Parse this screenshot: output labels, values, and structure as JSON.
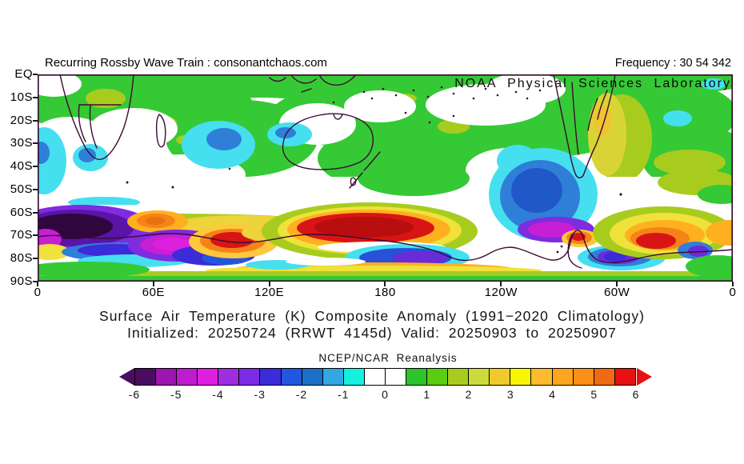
{
  "header": {
    "watermark": "Recurring Rossby Wave Train : consonantchaos.com",
    "frequency": "Frequency : 30 54 342",
    "credit": "NOAA Physical Sciences Laboratory"
  },
  "title": {
    "line1": "Surface Air Temperature (K) Composite Anomaly (1991−2020 Climatology)",
    "line2": "Initialized: 20250724 (RRWT 4145d) Valid: 20250903 to 20250907"
  },
  "chart_data": {
    "type": "heatmap",
    "title": "Surface Air Temperature (K) Composite Anomaly (1991-2020 Climatology)",
    "subtitle": "Initialized: 20250724 (RRWT 4145d) Valid: 20250903 to 20250907",
    "variable": "Surface Air Temperature anomaly",
    "units": "K",
    "colorbar_label": "NCEP/NCAR Reanalysis",
    "lat_tick_labels": [
      "EQ",
      "10S",
      "20S",
      "30S",
      "40S",
      "50S",
      "60S",
      "70S",
      "80S",
      "90S"
    ],
    "lon_tick_labels": [
      "0",
      "60E",
      "120E",
      "180",
      "120W",
      "60W",
      "0"
    ],
    "colorbar": {
      "min": -6,
      "max": 6,
      "cell_step": 0.5,
      "tick_labels": [
        "-6",
        "-5",
        "-4",
        "-3",
        "-2",
        "-1",
        "0",
        "1",
        "2",
        "3",
        "4",
        "5",
        "6"
      ],
      "cell_colors": [
        "#4A0D5F",
        "#9C15AE",
        "#BE1CD0",
        "#DE1FDE",
        "#A02CE0",
        "#7B2BE4",
        "#3B2BD8",
        "#2356DE",
        "#1B6FC8",
        "#33A7E3",
        "#16F0E0",
        "#FFFFFF",
        "#FFFFFF",
        "#2DC32D",
        "#5ACC12",
        "#A8CC1E",
        "#CBDB3B",
        "#EECB2A",
        "#FAF500",
        "#FFBB2E",
        "#FFA41E",
        "#FB8F18",
        "#F06A12",
        "#E81010"
      ],
      "left_arrow_color": "#4A0D5F",
      "right_arrow_color": "#E81010"
    },
    "anomaly_centers": [
      {
        "lon": "0-30E",
        "lat": "62-74S",
        "value_K": -6,
        "note": "strong cold core (dark purple)"
      },
      {
        "lon": "30-55E",
        "lat": "60-67S",
        "value_K": 4.5,
        "note": "warm orange blob"
      },
      {
        "lon": "55-85E",
        "lat": "72-80S",
        "value_K": -4.5,
        "note": "magenta/purple cold blob"
      },
      {
        "lon": "85-110E",
        "lat": "68-76S",
        "value_K": 5.5,
        "note": "warm red core"
      },
      {
        "lon": "130E-170W",
        "lat": "58-72S",
        "value_K": 6,
        "note": "largest warm red band along Antarctic coast"
      },
      {
        "lon": "165E-160W",
        "lat": "75-85S",
        "value_K": -3.5,
        "note": "blue/violet cold blob over Ross Ice Shelf"
      },
      {
        "lon": "120-80W",
        "lat": "40-70S",
        "value_K": -3,
        "note": "broad SE Pacific cold (cyan/blue), violet core near 70S"
      },
      {
        "lon": "75-60W",
        "lat": "68-74S",
        "value_K": 5,
        "note": "small warm red spot near Antarctic Peninsula"
      },
      {
        "lon": "55-20W",
        "lat": "65-78S",
        "value_K": 5.5,
        "note": "warm red/orange blob in Atlantic sector"
      },
      {
        "lon": "75-95E",
        "lat": "25-40S",
        "value_K": -2,
        "note": "Indian Ocean cyan/blue patch"
      },
      {
        "lon": "tropics",
        "lat": "EQ-35S",
        "value_K": 0.75,
        "note": "broad weak warm green with white (near-zero) gaps"
      }
    ]
  }
}
